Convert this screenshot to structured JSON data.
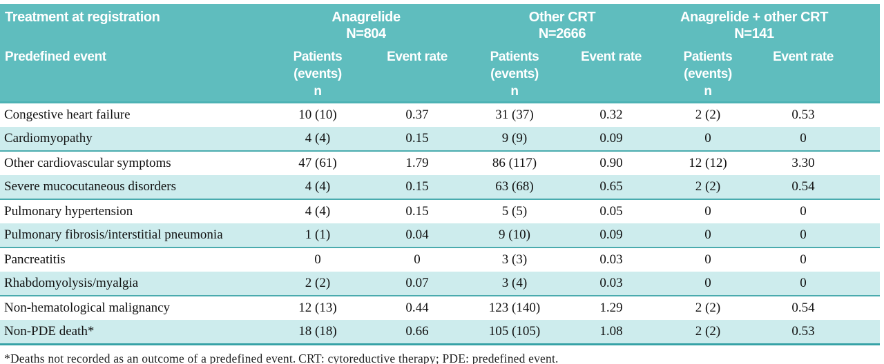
{
  "colors": {
    "header_teal": "#5fbdbe",
    "header_bottom_line": "#4db2b4",
    "shaded_row": "#cdeced",
    "pair_separator_line": "#4aabae",
    "table_bottom_line": "#36a2a6",
    "header_text": "#ffffff",
    "body_text": "#111111"
  },
  "table": {
    "corner": {
      "top": "Treatment at registration",
      "bottom": "Predefined event"
    },
    "groups": [
      {
        "title": "Anagrelide",
        "n": "N=804"
      },
      {
        "title": "Other CRT",
        "n": "N=2666"
      },
      {
        "title": "Anagrelide + other CRT",
        "n": "N=141"
      }
    ],
    "sub_headers": {
      "patients_line1": "Patients",
      "patients_line2": "(events)",
      "patients_line3": "n",
      "event_rate": "Event rate"
    },
    "rows": [
      {
        "event": "Congestive heart failure",
        "values": [
          "10 (10)",
          "0.37",
          "31 (37)",
          "0.32",
          "2 (2)",
          "0.53"
        ]
      },
      {
        "event": "Cardiomyopathy",
        "values": [
          "4 (4)",
          "0.15",
          "9 (9)",
          "0.09",
          "0",
          "0"
        ]
      },
      {
        "event": "Other cardiovascular symptoms",
        "values": [
          "47 (61)",
          "1.79",
          "86 (117)",
          "0.90",
          "12 (12)",
          "3.30"
        ]
      },
      {
        "event": "Severe mucocutaneous disorders",
        "values": [
          "4 (4)",
          "0.15",
          "63 (68)",
          "0.65",
          "2 (2)",
          "0.54"
        ]
      },
      {
        "event": "Pulmonary hypertension",
        "values": [
          "4 (4)",
          "0.15",
          "5 (5)",
          "0.05",
          "0",
          "0"
        ]
      },
      {
        "event": "Pulmonary fibrosis/interstitial pneumonia",
        "values": [
          "1 (1)",
          "0.04",
          "9 (10)",
          "0.09",
          "0",
          "0"
        ]
      },
      {
        "event": "Pancreatitis",
        "values": [
          "0",
          "0",
          "3 (3)",
          "0.03",
          "0",
          "0"
        ]
      },
      {
        "event": "Rhabdomyolysis/myalgia",
        "values": [
          "2 (2)",
          "0.07",
          "3 (4)",
          "0.03",
          "0",
          "0"
        ]
      },
      {
        "event": "Non-hematological malignancy",
        "values": [
          "12 (13)",
          "0.44",
          "123 (140)",
          "1.29",
          "2 (2)",
          "0.54"
        ]
      },
      {
        "event": "Non-PDE death*",
        "values": [
          "18 (18)",
          "0.66",
          "105 (105)",
          "1.08",
          "2 (2)",
          "0.53"
        ]
      }
    ],
    "footnote": "*Deaths not recorded as an outcome of a predefined event. CRT: cytoreductive therapy; PDE: predefined event."
  }
}
